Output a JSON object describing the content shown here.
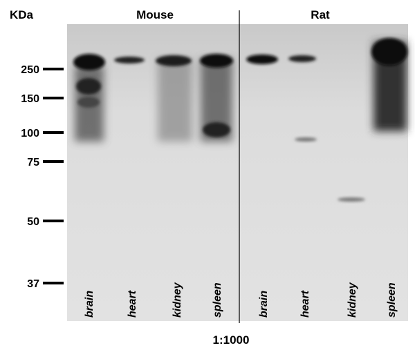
{
  "header": {
    "unit": "KDa",
    "groups": [
      "Mouse",
      "Rat"
    ]
  },
  "markers": [
    250,
    150,
    100,
    75,
    50,
    37
  ],
  "lanes": [
    "brain",
    "heart",
    "kidney",
    "spleen",
    "brain",
    "heart",
    "kidney",
    "spleen"
  ],
  "footer": "1:1000"
}
